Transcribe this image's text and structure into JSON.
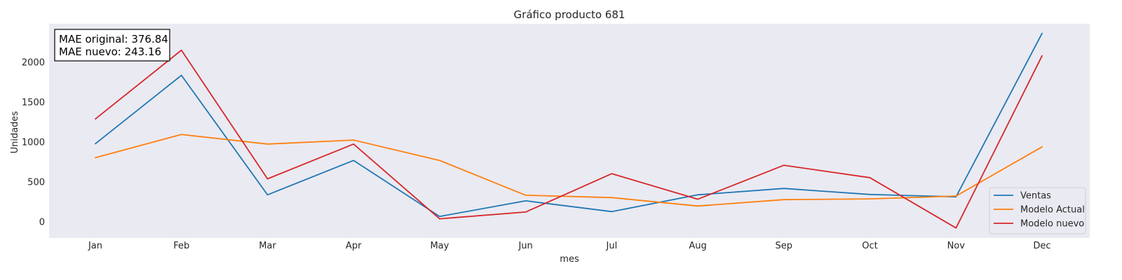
{
  "chart_data": {
    "type": "line",
    "title": "Gráfico producto 681",
    "xlabel": "mes",
    "ylabel": "Unidades",
    "categories": [
      "Jan",
      "Feb",
      "Mar",
      "Apr",
      "May",
      "Jun",
      "Jul",
      "Aug",
      "Sep",
      "Oct",
      "Nov",
      "Dec"
    ],
    "yticks": [
      0,
      500,
      1000,
      1500,
      2000
    ],
    "ylim": [
      -200,
      2480
    ],
    "grid": false,
    "legend_position": "lower-right",
    "series": [
      {
        "name": "Ventas",
        "color": "#1f77b4",
        "values": [
          980,
          1835,
          340,
          770,
          70,
          265,
          130,
          340,
          420,
          345,
          315,
          2360
        ]
      },
      {
        "name": "Modelo Actual",
        "color": "#ff7f0e",
        "values": [
          805,
          1095,
          975,
          1025,
          770,
          335,
          305,
          200,
          280,
          290,
          325,
          940
        ]
      },
      {
        "name": "Modelo nuevo",
        "color": "#d62728",
        "values": [
          1290,
          2150,
          540,
          975,
          40,
          125,
          605,
          285,
          710,
          555,
          -75,
          2080
        ]
      }
    ],
    "annotation": {
      "line1": "MAE original: 376.84",
      "line2": "MAE nuevo: 243.16"
    },
    "background_color": "#eaeaf2"
  }
}
